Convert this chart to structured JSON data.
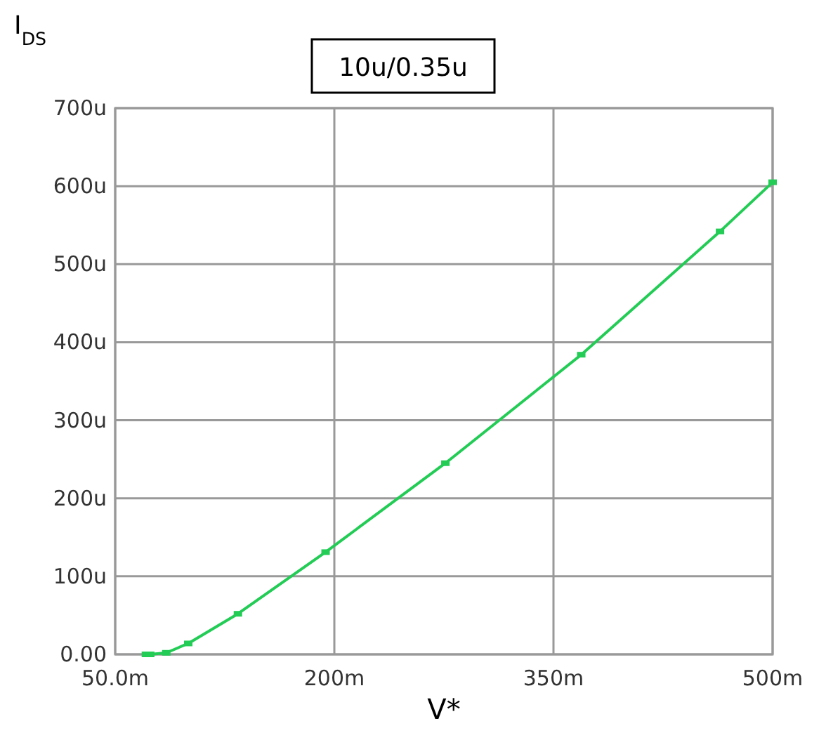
{
  "chart_data": {
    "type": "line",
    "title": "10u/0.35u",
    "xlabel": "V*",
    "ylabel": "I$_{DS}$",
    "x": [
      71,
      74,
      85,
      100,
      134,
      194,
      276,
      369,
      464,
      500
    ],
    "series": [
      {
        "color": "#22cc55",
        "values": [
          0,
          0,
          2,
          14,
          52,
          131,
          245,
          384,
          542,
          605
        ]
      }
    ],
    "xlim": [
      50,
      500
    ],
    "xticks": [
      {
        "value": 50,
        "label": "50.0m"
      },
      {
        "value": 200,
        "label": "200m"
      },
      {
        "value": 350,
        "label": "350m"
      },
      {
        "value": 500,
        "label": "500m"
      }
    ],
    "ylim": [
      0,
      700
    ],
    "yticks": [
      {
        "value": 0,
        "label": "0.00"
      },
      {
        "value": 100,
        "label": "100u"
      },
      {
        "value": 200,
        "label": "200u"
      },
      {
        "value": 300,
        "label": "300u"
      },
      {
        "value": 400,
        "label": "400u"
      },
      {
        "value": 500,
        "label": "500u"
      },
      {
        "value": 600,
        "label": "600u"
      },
      {
        "value": 700,
        "label": "700u"
      }
    ],
    "grid": true,
    "marker": "square",
    "line_style": "solid"
  }
}
